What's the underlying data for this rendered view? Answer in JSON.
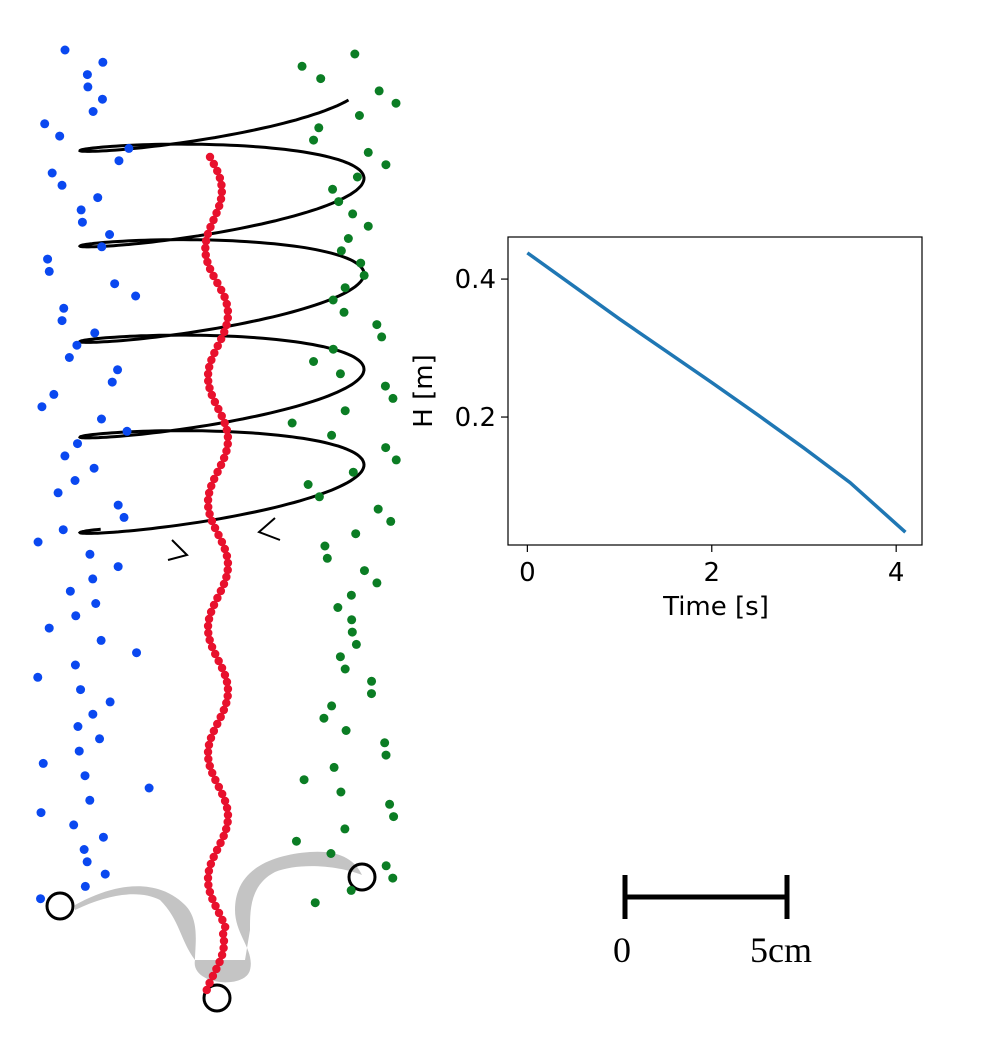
{
  "chart_data": {
    "type": "line",
    "xlabel": "Time [s]",
    "ylabel": "H [m]",
    "x": [
      0,
      0.5,
      1,
      1.5,
      2,
      2.5,
      3,
      3.5,
      4,
      4.1
    ],
    "series": [
      {
        "color": "#1f77b4",
        "values": [
          0.438,
          0.39,
          0.342,
          0.296,
          0.25,
          0.203,
          0.155,
          0.105,
          0.045,
          0.033
        ]
      }
    ],
    "xlim": [
      -0.21,
      4.28
    ],
    "ylim": [
      0.0145,
      0.461
    ],
    "xticks": [
      0,
      2,
      4
    ],
    "yticks": [
      0.2,
      0.4
    ]
  },
  "scale_bar": {
    "start_label": "0",
    "end_label": "5cm"
  }
}
